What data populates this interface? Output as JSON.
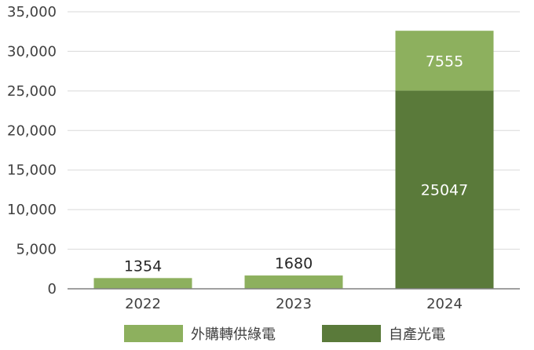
{
  "chart_data": {
    "type": "bar",
    "stacked": true,
    "categories": [
      "2022",
      "2023",
      "2024"
    ],
    "series": [
      {
        "name": "自產光電",
        "color": "#5a7a3a",
        "values": [
          0,
          0,
          25047
        ]
      },
      {
        "name": "外購轉供綠電",
        "color": "#8db05e",
        "values": [
          1354,
          1680,
          7555
        ]
      }
    ],
    "data_labels": [
      {
        "category": "2022",
        "series": "外購轉供綠電",
        "text": "1354",
        "position": "above"
      },
      {
        "category": "2023",
        "series": "外購轉供綠電",
        "text": "1680",
        "position": "above"
      },
      {
        "category": "2024",
        "series": "外購轉供綠電",
        "text": "7555",
        "position": "inside"
      },
      {
        "category": "2024",
        "series": "自產光電",
        "text": "25047",
        "position": "inside"
      }
    ],
    "ylim": [
      0,
      35000
    ],
    "y_ticks": [
      0,
      5000,
      10000,
      15000,
      20000,
      25000,
      30000,
      35000
    ],
    "y_tick_labels": [
      "0",
      "5,000",
      "10,000",
      "15,000",
      "20,000",
      "25,000",
      "30,000",
      "35,000"
    ],
    "grid": true,
    "legend": {
      "placement": "bottom",
      "order": [
        "外購轉供綠電",
        "自產光電"
      ]
    },
    "title": "",
    "xlabel": "",
    "ylabel": ""
  }
}
